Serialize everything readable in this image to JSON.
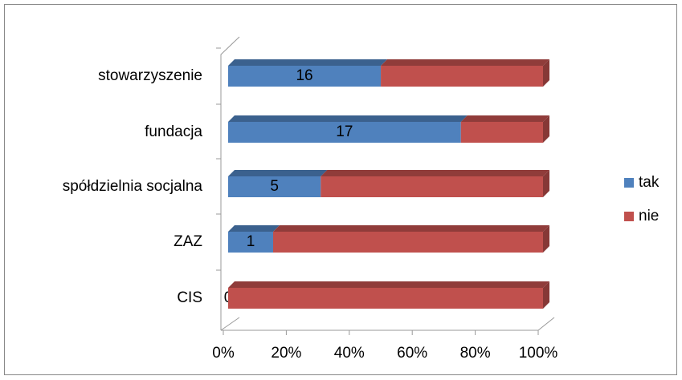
{
  "chart_data": {
    "type": "bar",
    "orientation": "horizontal",
    "stacking": "percent",
    "categories": [
      "stowarzyszenie",
      "fundacja",
      "spółdzielnia socjalna",
      "ZAZ",
      "CIS"
    ],
    "series": [
      {
        "name": "tak",
        "color": "#4f81bd",
        "values": [
          16,
          17,
          5,
          1,
          0
        ]
      },
      {
        "name": "nie",
        "color": "#c0504d",
        "values": [
          17,
          6,
          12,
          6,
          6
        ]
      }
    ],
    "xlim": [
      0,
      100
    ],
    "xticks": [
      {
        "value": 0,
        "label": "0%"
      },
      {
        "value": 20,
        "label": "20%"
      },
      {
        "value": 40,
        "label": "40%"
      },
      {
        "value": 60,
        "label": "60%"
      },
      {
        "value": 80,
        "label": "80%"
      },
      {
        "value": 100,
        "label": "100%"
      }
    ],
    "data_labels_series": 0,
    "legend": "right"
  }
}
